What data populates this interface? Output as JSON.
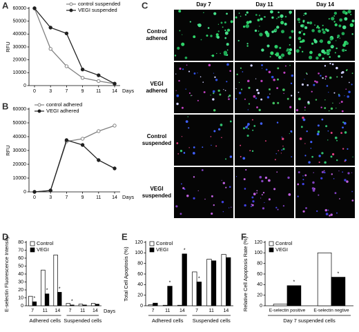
{
  "chart_data": [
    {
      "panel": "A",
      "type": "line",
      "ylabel": "RFU",
      "xlabel": "Days",
      "categories": [
        "0",
        "3",
        "7",
        "9",
        "11",
        "14"
      ],
      "series": [
        {
          "name": "control suspended",
          "color": "#808080",
          "marker_fill": "#ffffff",
          "values": [
            60000,
            28500,
            15000,
            6000,
            3500,
            1500
          ]
        },
        {
          "name": "VEGI suspended",
          "color": "#202020",
          "marker_fill": "#202020",
          "values": [
            60000,
            45000,
            40500,
            12500,
            8000,
            1500
          ]
        }
      ],
      "ylim": [
        0,
        60000
      ],
      "yticks": [
        0,
        10000,
        20000,
        30000,
        40000,
        50000,
        60000
      ],
      "legend": "upper right"
    },
    {
      "panel": "B",
      "type": "line",
      "ylabel": "RFU",
      "xlabel": "Days",
      "categories": [
        "0",
        "3",
        "7",
        "9",
        "11",
        "14"
      ],
      "series": [
        {
          "name": "control adhered",
          "color": "#808080",
          "marker_fill": "#ffffff",
          "values": [
            0,
            1000,
            36500,
            38500,
            44000,
            48000
          ]
        },
        {
          "name": "VEGI adhered",
          "color": "#202020",
          "marker_fill": "#202020",
          "values": [
            0,
            1000,
            37500,
            34000,
            23000,
            17000
          ]
        }
      ],
      "ylim": [
        0,
        60000
      ],
      "yticks": [
        0,
        10000,
        20000,
        30000,
        40000,
        50000,
        60000
      ],
      "legend": "upper left"
    },
    {
      "panel": "D",
      "type": "bar",
      "ylabel": "E-selectin Fluorescence Intensity",
      "xlabel": "Days",
      "categories": [
        "7",
        "11",
        "14",
        "7",
        "11",
        "14"
      ],
      "groups": [
        "Adhered cells",
        "Suspended cells"
      ],
      "series": [
        {
          "name": "Control",
          "color": "#ffffff",
          "values": [
            12,
            45,
            64,
            3,
            2,
            3
          ]
        },
        {
          "name": "VEGI",
          "color": "#000000",
          "values": [
            5,
            15,
            17,
            1,
            1,
            2
          ],
          "annotations": [
            "*",
            "*",
            "*",
            "*",
            null,
            null
          ]
        }
      ],
      "ylim": [
        0,
        80
      ],
      "yticks": [
        0,
        10,
        20,
        30,
        40,
        50,
        60,
        70,
        80
      ],
      "legend": "upper left"
    },
    {
      "panel": "E",
      "type": "bar",
      "ylabel": "Total Cell Apoptosis (%)",
      "categories": [
        "7",
        "11",
        "14",
        "7",
        "11",
        "14"
      ],
      "groups": [
        "Adhered cells",
        "Suspended cells"
      ],
      "series": [
        {
          "name": "Control",
          "color": "#ffffff",
          "values": [
            2,
            1,
            1,
            64,
            88,
            97
          ]
        },
        {
          "name": "VEGI",
          "color": "#000000",
          "values": [
            5,
            37,
            98,
            45,
            85,
            91
          ],
          "annotations": [
            null,
            "*",
            "*",
            "*",
            null,
            null
          ]
        }
      ],
      "ylim": [
        0,
        120
      ],
      "yticks": [
        0,
        20,
        40,
        60,
        80,
        100,
        120
      ],
      "legend": "upper left"
    },
    {
      "panel": "F",
      "type": "bar",
      "ylabel": "Relative Cell Apoptosis Rate (%)",
      "categories": [
        "E-selectin positive",
        "E-selectin negtive"
      ],
      "groups": [
        "Day 7 suspended cells"
      ],
      "series": [
        {
          "name": "Control",
          "color": "#ffffff",
          "values": [
            3,
            100
          ]
        },
        {
          "name": "VEGI",
          "color": "#000000",
          "values": [
            38,
            54
          ],
          "annotations": [
            "*",
            "*"
          ]
        }
      ],
      "ylim": [
        0,
        120
      ],
      "yticks": [
        0,
        20,
        40,
        60,
        80,
        100,
        120
      ],
      "legend": "upper left"
    }
  ],
  "image_panel": {
    "panel": "C",
    "columns": [
      "Day 7",
      "Day 11",
      "Day 14"
    ],
    "rows": [
      "Control adhered",
      "VEGI adhered",
      "Control suspended",
      "VEGI suspended"
    ]
  }
}
